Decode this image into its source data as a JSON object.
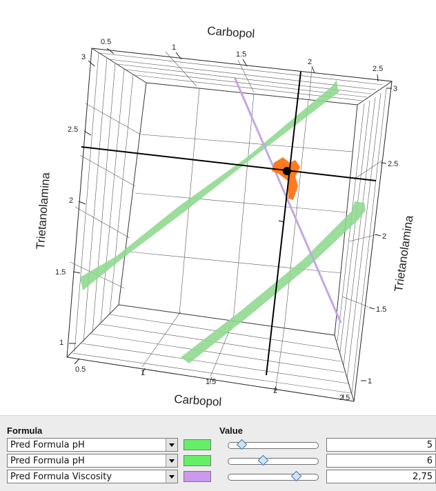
{
  "plot": {
    "top_axis_title": "Carbopol",
    "bottom_axis_title": "Carbopol",
    "left_axis_title": "Trietanolamina",
    "right_axis_title": "Trietanolamina",
    "top_ticks": [
      "0.5",
      "1",
      "1.5",
      "2",
      "2.5"
    ],
    "bottom_ticks": [
      "0.5",
      "1",
      "1.5",
      "2",
      "2.5"
    ],
    "left_ticks": [
      "3",
      "2.5",
      "2",
      "1.5",
      "1"
    ],
    "right_ticks": [
      "3",
      "2.5",
      "2",
      "1.5",
      "1"
    ],
    "colors": {
      "green_band": "#8ed88e",
      "purple_line": "#c4a6e4",
      "orange_region": "#ff7a1f",
      "crosshair": "#000000"
    }
  },
  "panel": {
    "formula_header": "Formula",
    "value_header": "Value",
    "rows": [
      {
        "formula": "Pred Formula pH",
        "color": "#66ee66",
        "slider": 0.12,
        "value": "5"
      },
      {
        "formula": "Pred Formula pH",
        "color": "#66ee66",
        "slider": 0.38,
        "value": "6"
      },
      {
        "formula": "Pred Formula Viscosity",
        "color": "#cc99ee",
        "slider": 0.78,
        "value": "2,75"
      }
    ]
  }
}
